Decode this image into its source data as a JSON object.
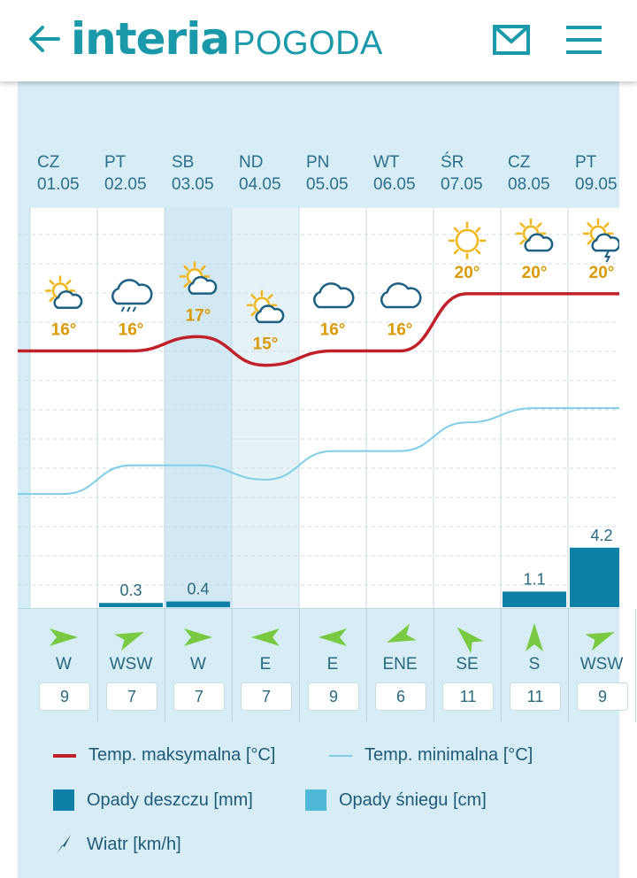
{
  "header": {
    "back_icon": "arrow-left-icon",
    "brand": "interia",
    "section": "POGODA",
    "mail_icon": "mail-icon",
    "menu_icon": "hamburger-menu-icon",
    "accent_color": "#1a99aa"
  },
  "days": [
    {
      "name": "CZ",
      "date": "01.05",
      "max": "16°",
      "icon": "sun-cloud-icon",
      "rain": "",
      "wind_dir": "W",
      "wind_speed": "9",
      "wind_deg": 270
    },
    {
      "name": "PT",
      "date": "02.05",
      "max": "16°",
      "icon": "cloud-rain-icon",
      "rain": "0.3",
      "wind_dir": "WSW",
      "wind_speed": "7",
      "wind_deg": 248
    },
    {
      "name": "SB",
      "date": "03.05",
      "max": "17°",
      "icon": "sun-cloud-icon",
      "rain": "0.4",
      "wind_dir": "W",
      "wind_speed": "7",
      "wind_deg": 270
    },
    {
      "name": "ND",
      "date": "04.05",
      "max": "15°",
      "icon": "sun-cloud-icon",
      "rain": "",
      "wind_dir": "E",
      "wind_speed": "7",
      "wind_deg": 90
    },
    {
      "name": "PN",
      "date": "05.05",
      "max": "16°",
      "icon": "cloud-icon",
      "rain": "",
      "wind_dir": "E",
      "wind_speed": "9",
      "wind_deg": 90
    },
    {
      "name": "WT",
      "date": "06.05",
      "max": "16°",
      "icon": "cloud-icon",
      "rain": "",
      "wind_dir": "ENE",
      "wind_speed": "6",
      "wind_deg": 68
    },
    {
      "name": "ŚR",
      "date": "07.05",
      "max": "20°",
      "icon": "sun-icon",
      "rain": "",
      "wind_dir": "SE",
      "wind_speed": "11",
      "wind_deg": 135
    },
    {
      "name": "CZ",
      "date": "08.05",
      "max": "20°",
      "icon": "sun-cloud-icon",
      "rain": "1.1",
      "wind_dir": "S",
      "wind_speed": "11",
      "wind_deg": 180
    },
    {
      "name": "PT",
      "date": "09.05",
      "max": "20°",
      "icon": "sun-cloud-storm-icon",
      "rain": "4.2",
      "wind_dir": "WSW",
      "wind_speed": "9",
      "wind_deg": 248
    }
  ],
  "chart_data": {
    "type": "line",
    "x": [
      "01.05",
      "02.05",
      "03.05",
      "04.05",
      "05.05",
      "06.05",
      "07.05",
      "08.05",
      "09.05"
    ],
    "series": [
      {
        "name": "Temp. maksymalna [°C]",
        "values": [
          16,
          16,
          17,
          15,
          16,
          16,
          20,
          20,
          20
        ],
        "color": "#c0202a"
      },
      {
        "name": "Temp. minimalna [°C]",
        "values": [
          6,
          8,
          8,
          7,
          9,
          9,
          11,
          12,
          12
        ],
        "color": "#7fcde6"
      },
      {
        "name": "Opady deszczu [mm]",
        "values": [
          0,
          0.3,
          0.4,
          0,
          0,
          0,
          0,
          1.1,
          4.2
        ],
        "color": "#0e7fa6"
      }
    ],
    "grid": true,
    "legend_position": "bottom"
  },
  "legend": {
    "max_temp": "Temp. maksymalna [°C]",
    "min_temp": "Temp. minimalna [°C]",
    "rain": "Opady deszczu [mm]",
    "snow": "Opady śniegu [cm]",
    "wind": "Wiatr [km/h]",
    "max_color": "#c0202a",
    "min_color": "#7fcde6",
    "rain_color": "#0e7fa6",
    "snow_color": "#4fb8d8"
  }
}
